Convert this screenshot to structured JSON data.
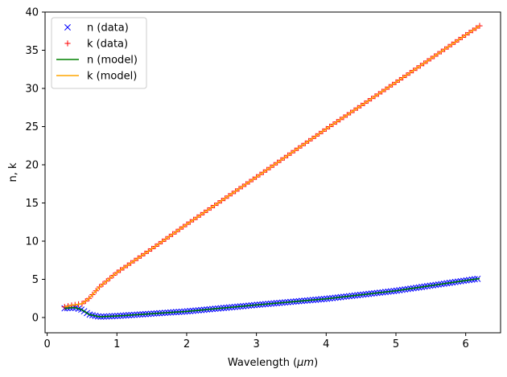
{
  "chart_data": {
    "type": "line",
    "title": "",
    "xlabel": "Wavelength (",
    "xlabel_unit": "μm",
    "xlabel_close": ")",
    "ylabel": "n, k",
    "xlim": [
      -0.03,
      6.5
    ],
    "ylim": [
      -2.0,
      40.0
    ],
    "xticks": [
      0,
      1,
      2,
      3,
      4,
      5,
      6
    ],
    "yticks": [
      0,
      5,
      10,
      15,
      20,
      25,
      30,
      35,
      40
    ],
    "xtick_labels": [
      "0",
      "1",
      "2",
      "3",
      "4",
      "5",
      "6"
    ],
    "ytick_labels": [
      "0",
      "5",
      "10",
      "15",
      "20",
      "25",
      "30",
      "35",
      "40"
    ],
    "grid": false,
    "legend_position": "top-left",
    "series": [
      {
        "name": "n (data)",
        "kind": "marker",
        "marker": "x",
        "color": "#0000ff",
        "x_range": [
          0.25,
          6.2
        ],
        "spacing": 0.04,
        "generator": "n_curve"
      },
      {
        "name": "k (data)",
        "kind": "marker",
        "marker": "+",
        "color": "#ff0000",
        "x_range": [
          0.25,
          6.2
        ],
        "spacing": 0.05,
        "generator": "k_curve"
      },
      {
        "name": "n (model)",
        "kind": "line",
        "color": "#008000",
        "x_range": [
          0.25,
          6.2
        ],
        "generator": "n_curve"
      },
      {
        "name": "k (model)",
        "kind": "line",
        "color": "#ffa500",
        "x_range": [
          0.25,
          6.2
        ],
        "generator": "k_curve"
      }
    ],
    "key_points": {
      "n_curve": [
        [
          0.25,
          1.2
        ],
        [
          0.4,
          1.3
        ],
        [
          0.5,
          1.0
        ],
        [
          0.6,
          0.4
        ],
        [
          0.75,
          0.1
        ],
        [
          1.0,
          0.2
        ],
        [
          1.5,
          0.5
        ],
        [
          2.0,
          0.8
        ],
        [
          3.0,
          1.65
        ],
        [
          4.0,
          2.45
        ],
        [
          5.0,
          3.5
        ],
        [
          6.0,
          4.85
        ],
        [
          6.2,
          5.1
        ]
      ],
      "k_curve": [
        [
          0.25,
          1.4
        ],
        [
          0.35,
          1.6
        ],
        [
          0.5,
          1.8
        ],
        [
          0.6,
          2.5
        ],
        [
          0.75,
          4.0
        ],
        [
          1.0,
          5.9
        ],
        [
          1.5,
          9.0
        ],
        [
          2.0,
          12.2
        ],
        [
          3.0,
          18.4
        ],
        [
          4.0,
          24.7
        ],
        [
          5.0,
          30.8
        ],
        [
          6.0,
          37.0
        ],
        [
          6.2,
          38.2
        ]
      ]
    }
  }
}
